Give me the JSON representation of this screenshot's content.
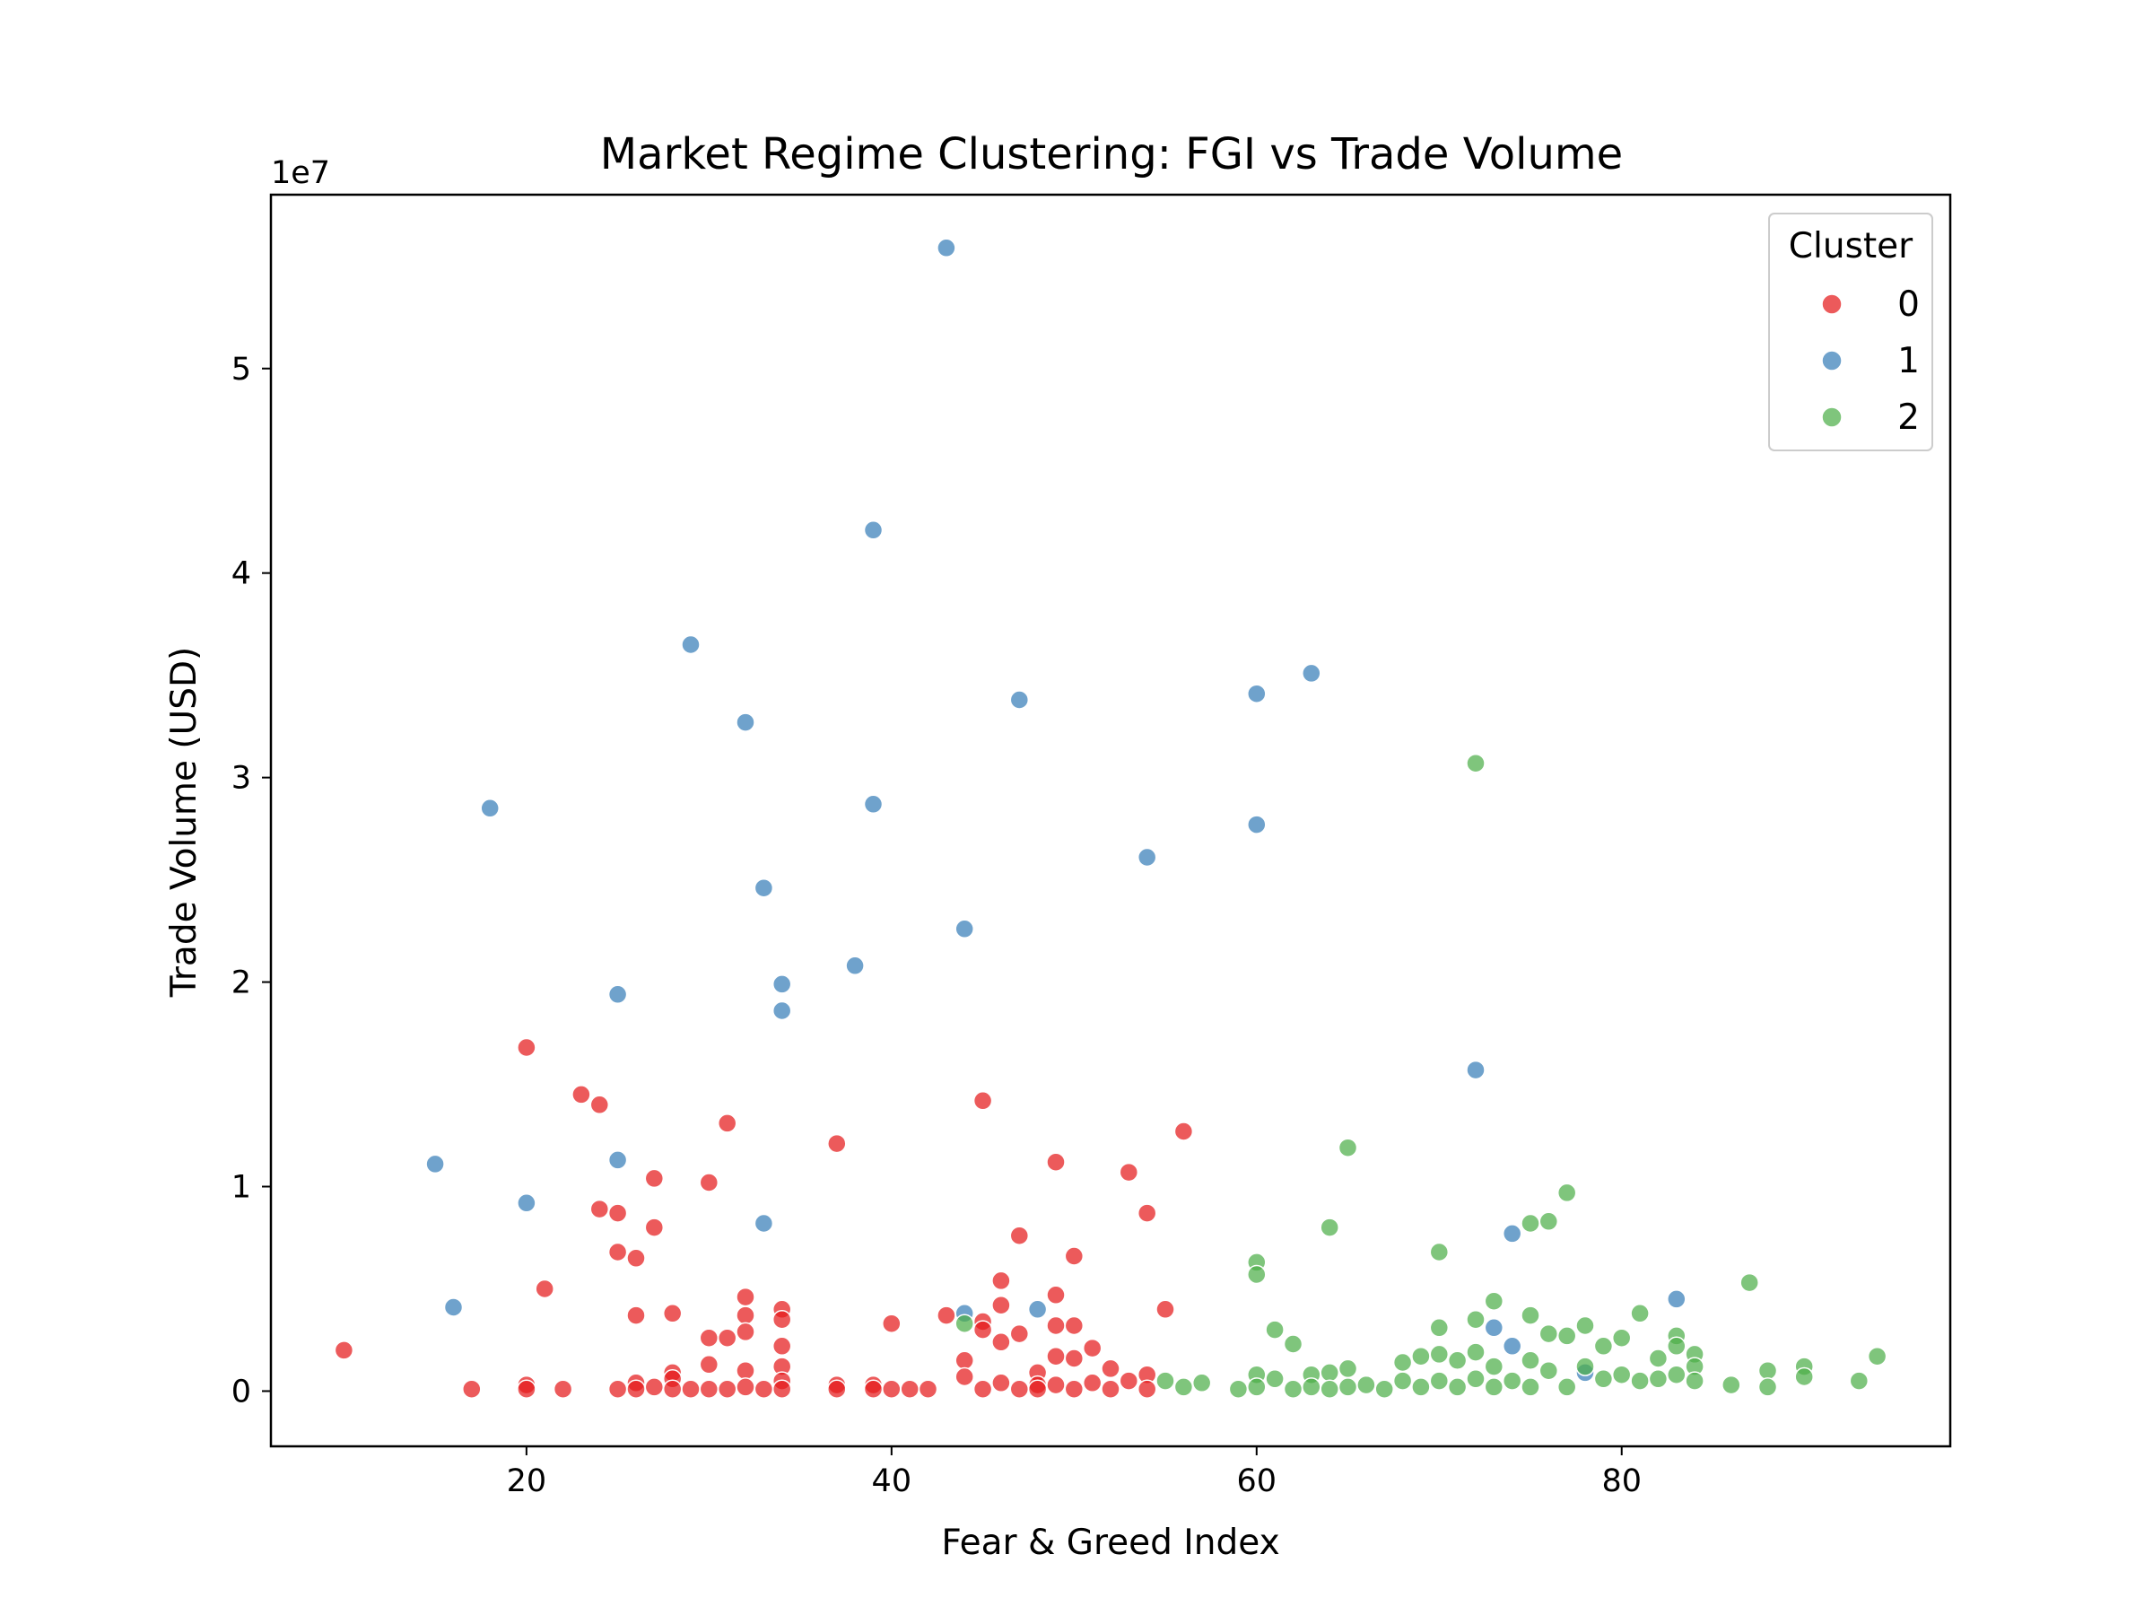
{
  "chart_data": {
    "type": "scatter",
    "title": "Market Regime Clustering: FGI vs Trade Volume",
    "xlabel": "Fear & Greed Index",
    "ylabel": "Trade Volume (USD)",
    "y_offset_label": "1e7",
    "xlim": [
      6,
      98
    ],
    "ylim": [
      -0.27,
      5.85
    ],
    "y_unit_scale": 10000000,
    "x_ticks": [
      20,
      40,
      60,
      80
    ],
    "y_ticks": [
      0,
      1,
      2,
      3,
      4,
      5
    ],
    "grid": false,
    "legend": {
      "title": "Cluster",
      "placement": "top-right"
    },
    "colors": {
      "0": "#e41a1c",
      "1": "#377eb8",
      "2": "#4daf4a"
    },
    "series": [
      {
        "name": "0",
        "color": "#e41a1c",
        "points": [
          [
            10,
            0.2
          ],
          [
            17,
            0.01
          ],
          [
            20,
            1.68
          ],
          [
            20,
            0.03
          ],
          [
            20,
            0.01
          ],
          [
            21,
            0.5
          ],
          [
            22,
            0.01
          ],
          [
            23,
            1.45
          ],
          [
            24,
            1.4
          ],
          [
            24,
            0.89
          ],
          [
            25,
            0.87
          ],
          [
            25,
            0.68
          ],
          [
            25,
            0.01
          ],
          [
            26,
            0.65
          ],
          [
            26,
            0.37
          ],
          [
            26,
            0.04
          ],
          [
            26,
            0.01
          ],
          [
            27,
            1.04
          ],
          [
            27,
            0.8
          ],
          [
            27,
            0.02
          ],
          [
            28,
            0.38
          ],
          [
            28,
            0.09
          ],
          [
            28,
            0.06
          ],
          [
            28,
            0.01
          ],
          [
            29,
            0.01
          ],
          [
            30,
            1.02
          ],
          [
            30,
            0.26
          ],
          [
            30,
            0.13
          ],
          [
            30,
            0.01
          ],
          [
            31,
            1.31
          ],
          [
            31,
            0.26
          ],
          [
            31,
            0.01
          ],
          [
            32,
            0.46
          ],
          [
            32,
            0.37
          ],
          [
            32,
            0.29
          ],
          [
            32,
            0.1
          ],
          [
            32,
            0.02
          ],
          [
            33,
            0.01
          ],
          [
            34,
            0.4
          ],
          [
            34,
            0.35
          ],
          [
            34,
            0.22
          ],
          [
            34,
            0.12
          ],
          [
            34,
            0.05
          ],
          [
            34,
            0.01
          ],
          [
            37,
            1.21
          ],
          [
            37,
            0.03
          ],
          [
            37,
            0.01
          ],
          [
            39,
            0.03
          ],
          [
            39,
            0.01
          ],
          [
            40,
            0.33
          ],
          [
            40,
            0.01
          ],
          [
            41,
            0.01
          ],
          [
            42,
            0.01
          ],
          [
            43,
            0.37
          ],
          [
            44,
            0.15
          ],
          [
            44,
            0.07
          ],
          [
            45,
            1.42
          ],
          [
            45,
            0.34
          ],
          [
            45,
            0.3
          ],
          [
            45,
            0.01
          ],
          [
            46,
            0.54
          ],
          [
            46,
            0.42
          ],
          [
            46,
            0.24
          ],
          [
            46,
            0.04
          ],
          [
            47,
            0.76
          ],
          [
            47,
            0.28
          ],
          [
            47,
            0.01
          ],
          [
            48,
            0.09
          ],
          [
            48,
            0.03
          ],
          [
            48,
            0.01
          ],
          [
            49,
            1.12
          ],
          [
            49,
            0.47
          ],
          [
            49,
            0.32
          ],
          [
            49,
            0.17
          ],
          [
            49,
            0.03
          ],
          [
            50,
            0.66
          ],
          [
            50,
            0.32
          ],
          [
            50,
            0.16
          ],
          [
            50,
            0.01
          ],
          [
            51,
            0.21
          ],
          [
            51,
            0.04
          ],
          [
            52,
            0.11
          ],
          [
            52,
            0.01
          ],
          [
            53,
            1.07
          ],
          [
            53,
            0.05
          ],
          [
            54,
            0.87
          ],
          [
            54,
            0.08
          ],
          [
            54,
            0.01
          ],
          [
            55,
            0.4
          ],
          [
            56,
            1.27
          ]
        ]
      },
      {
        "name": "1",
        "color": "#377eb8",
        "points": [
          [
            15,
            1.11
          ],
          [
            16,
            0.41
          ],
          [
            18,
            2.85
          ],
          [
            20,
            0.92
          ],
          [
            25,
            1.94
          ],
          [
            25,
            1.13
          ],
          [
            29,
            3.65
          ],
          [
            32,
            3.27
          ],
          [
            33,
            2.46
          ],
          [
            33,
            0.82
          ],
          [
            34,
            1.99
          ],
          [
            34,
            1.86
          ],
          [
            38,
            2.08
          ],
          [
            39,
            4.21
          ],
          [
            39,
            2.87
          ],
          [
            43,
            5.59
          ],
          [
            44,
            2.26
          ],
          [
            44,
            0.38
          ],
          [
            47,
            3.38
          ],
          [
            48,
            0.4
          ],
          [
            54,
            2.61
          ],
          [
            60,
            3.41
          ],
          [
            60,
            2.77
          ],
          [
            63,
            3.51
          ],
          [
            72,
            1.57
          ],
          [
            73,
            0.31
          ],
          [
            74,
            0.77
          ],
          [
            74,
            0.22
          ],
          [
            78,
            0.09
          ],
          [
            83,
            0.45
          ]
        ]
      },
      {
        "name": "2",
        "color": "#4daf4a",
        "points": [
          [
            44,
            0.33
          ],
          [
            55,
            0.05
          ],
          [
            56,
            0.02
          ],
          [
            57,
            0.04
          ],
          [
            59,
            0.01
          ],
          [
            60,
            0.63
          ],
          [
            60,
            0.57
          ],
          [
            60,
            0.08
          ],
          [
            60,
            0.02
          ],
          [
            61,
            0.3
          ],
          [
            61,
            0.06
          ],
          [
            62,
            0.23
          ],
          [
            62,
            0.01
          ],
          [
            63,
            0.08
          ],
          [
            63,
            0.02
          ],
          [
            64,
            0.8
          ],
          [
            64,
            0.09
          ],
          [
            64,
            0.01
          ],
          [
            65,
            1.19
          ],
          [
            65,
            0.11
          ],
          [
            65,
            0.02
          ],
          [
            66,
            0.03
          ],
          [
            67,
            0.01
          ],
          [
            68,
            0.14
          ],
          [
            68,
            0.05
          ],
          [
            69,
            0.17
          ],
          [
            69,
            0.02
          ],
          [
            70,
            0.68
          ],
          [
            70,
            0.31
          ],
          [
            70,
            0.18
          ],
          [
            70,
            0.05
          ],
          [
            71,
            0.15
          ],
          [
            71,
            0.02
          ],
          [
            72,
            3.07
          ],
          [
            72,
            0.35
          ],
          [
            72,
            0.19
          ],
          [
            72,
            0.06
          ],
          [
            73,
            0.44
          ],
          [
            73,
            0.12
          ],
          [
            73,
            0.02
          ],
          [
            74,
            0.05
          ],
          [
            75,
            0.82
          ],
          [
            75,
            0.37
          ],
          [
            75,
            0.15
          ],
          [
            75,
            0.02
          ],
          [
            76,
            0.83
          ],
          [
            76,
            0.28
          ],
          [
            76,
            0.1
          ],
          [
            77,
            0.97
          ],
          [
            77,
            0.27
          ],
          [
            77,
            0.02
          ],
          [
            78,
            0.32
          ],
          [
            78,
            0.12
          ],
          [
            79,
            0.22
          ],
          [
            79,
            0.06
          ],
          [
            80,
            0.26
          ],
          [
            80,
            0.08
          ],
          [
            81,
            0.38
          ],
          [
            81,
            0.05
          ],
          [
            82,
            0.16
          ],
          [
            82,
            0.06
          ],
          [
            83,
            0.27
          ],
          [
            83,
            0.22
          ],
          [
            83,
            0.08
          ],
          [
            84,
            0.18
          ],
          [
            84,
            0.12
          ],
          [
            84,
            0.05
          ],
          [
            86,
            0.03
          ],
          [
            87,
            0.53
          ],
          [
            88,
            0.1
          ],
          [
            88,
            0.02
          ],
          [
            90,
            0.12
          ],
          [
            90,
            0.07
          ],
          [
            93,
            0.05
          ],
          [
            94,
            0.17
          ]
        ]
      }
    ]
  }
}
